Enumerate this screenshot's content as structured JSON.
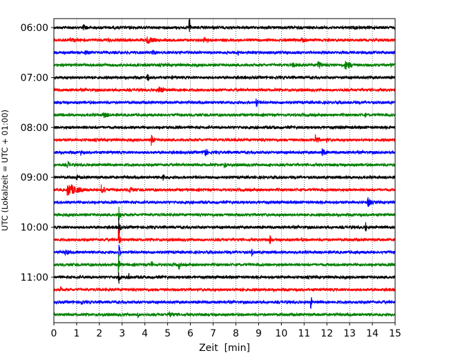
{
  "chart_data": {
    "type": "line",
    "title": "",
    "xlabel": "Zeit  [min]",
    "ylabel": "UTC (Lokalzeit = UTC + 01:00)",
    "xlim": [
      0,
      15
    ],
    "x_ticks": [
      "0",
      "1",
      "2",
      "3",
      "4",
      "5",
      "6",
      "7",
      "8",
      "9",
      "10",
      "11",
      "12",
      "13",
      "14",
      "15"
    ],
    "y_tick_labels": [
      "06:00",
      "07:00",
      "08:00",
      "09:00",
      "10:00",
      "11:00"
    ],
    "y_tick_trace_index": [
      0,
      4,
      8,
      12,
      16,
      20
    ],
    "grid": {
      "x": "dotted vertical at each minute",
      "y": "none"
    },
    "trace_colors": [
      "#000000",
      "#ff0000",
      "#0000ff",
      "#008000"
    ],
    "trace_interval_minutes": 15,
    "traces": [
      {
        "start": "06:00",
        "color": "#000000",
        "events": [
          {
            "t": 1.3,
            "amp": 0.5,
            "dur": 0.5
          },
          {
            "t": 5.95,
            "amp": 1.7,
            "dur": 0.1
          },
          {
            "t": 13.3,
            "amp": 0.35,
            "dur": 0.3
          }
        ]
      },
      {
        "start": "06:15",
        "color": "#ff0000",
        "events": [
          {
            "t": 0.7,
            "amp": 0.45,
            "dur": 0.9
          },
          {
            "t": 2.4,
            "amp": 0.35,
            "dur": 0.5
          },
          {
            "t": 4.1,
            "amp": 0.7,
            "dur": 0.7
          },
          {
            "t": 6.6,
            "amp": 0.45,
            "dur": 0.9
          },
          {
            "t": 10.9,
            "amp": 0.5,
            "dur": 0.6
          }
        ]
      },
      {
        "start": "06:30",
        "color": "#0000ff",
        "events": [
          {
            "t": 1.4,
            "amp": 0.4,
            "dur": 0.9
          },
          {
            "t": 4.3,
            "amp": 0.45,
            "dur": 0.8
          },
          {
            "t": 8.1,
            "amp": 0.5,
            "dur": 0.1
          }
        ]
      },
      {
        "start": "06:45",
        "color": "#008000",
        "events": [
          {
            "t": 10.5,
            "amp": 0.4,
            "dur": 1.0
          },
          {
            "t": 11.6,
            "amp": 0.8,
            "dur": 0.4
          },
          {
            "t": 12.8,
            "amp": 0.7,
            "dur": 0.8
          },
          {
            "t": 14.8,
            "amp": 0.4,
            "dur": 0.3
          }
        ]
      },
      {
        "start": "07:00",
        "color": "#000000",
        "events": [
          {
            "t": 4.1,
            "amp": 0.8,
            "dur": 0.2
          },
          {
            "t": 5.2,
            "amp": 0.3,
            "dur": 0.3
          },
          {
            "t": 13.9,
            "amp": 0.3,
            "dur": 0.2
          }
        ]
      },
      {
        "start": "07:15",
        "color": "#ff0000",
        "events": [
          {
            "t": 4.6,
            "amp": 0.6,
            "dur": 0.8
          },
          {
            "t": 5.7,
            "amp": 0.35,
            "dur": 0.3
          }
        ]
      },
      {
        "start": "07:30",
        "color": "#0000ff",
        "events": [
          {
            "t": 8.9,
            "amp": 1.0,
            "dur": 0.1
          }
        ]
      },
      {
        "start": "07:45",
        "color": "#008000",
        "events": [
          {
            "t": 2.2,
            "amp": 0.5,
            "dur": 0.8
          },
          {
            "t": 13.7,
            "amp": 0.4,
            "dur": 0.1
          }
        ]
      },
      {
        "start": "08:00",
        "color": "#000000",
        "events": [
          {
            "t": 1.3,
            "amp": 0.3,
            "dur": 0.4
          },
          {
            "t": 9.7,
            "amp": 0.3,
            "dur": 0.4
          },
          {
            "t": 12.6,
            "amp": 0.35,
            "dur": 0.3
          }
        ]
      },
      {
        "start": "08:15",
        "color": "#ff0000",
        "events": [
          {
            "t": 4.3,
            "amp": 0.9,
            "dur": 0.2
          },
          {
            "t": 11.5,
            "amp": 1.0,
            "dur": 0.3
          },
          {
            "t": 12.0,
            "amp": 0.4,
            "dur": 0.5
          }
        ]
      },
      {
        "start": "08:30",
        "color": "#0000ff",
        "events": [
          {
            "t": 1.2,
            "amp": 0.5,
            "dur": 0.1
          },
          {
            "t": 6.6,
            "amp": 0.9,
            "dur": 0.3
          },
          {
            "t": 11.8,
            "amp": 0.6,
            "dur": 0.4
          }
        ]
      },
      {
        "start": "08:45",
        "color": "#008000",
        "events": [
          {
            "t": 0.6,
            "amp": 0.7,
            "dur": 0.2
          },
          {
            "t": 7.5,
            "amp": 0.6,
            "dur": 0.2
          },
          {
            "t": 9.5,
            "amp": 0.4,
            "dur": 0.1
          }
        ]
      },
      {
        "start": "09:00",
        "color": "#000000",
        "events": [
          {
            "t": 1.0,
            "amp": 0.5,
            "dur": 0.2
          },
          {
            "t": 4.8,
            "amp": 0.7,
            "dur": 0.1
          },
          {
            "t": 10.0,
            "amp": 0.3,
            "dur": 0.3
          }
        ]
      },
      {
        "start": "09:15",
        "color": "#ff0000",
        "events": [
          {
            "t": 0.6,
            "amp": 1.0,
            "dur": 1.2
          },
          {
            "t": 2.1,
            "amp": 0.8,
            "dur": 0.4
          },
          {
            "t": 3.3,
            "amp": 0.6,
            "dur": 0.5
          },
          {
            "t": 12.4,
            "amp": 0.3,
            "dur": 0.3
          }
        ]
      },
      {
        "start": "09:30",
        "color": "#0000ff",
        "events": [
          {
            "t": 13.8,
            "amp": 1.1,
            "dur": 0.2
          }
        ]
      },
      {
        "start": "09:45",
        "color": "#008000",
        "events": [
          {
            "t": 2.85,
            "amp": 1.6,
            "dur": 0.1
          },
          {
            "t": 8.0,
            "amp": 0.3,
            "dur": 0.3
          }
        ]
      },
      {
        "start": "10:00",
        "color": "#000000",
        "events": [
          {
            "t": 2.85,
            "amp": 1.6,
            "dur": 0.1
          },
          {
            "t": 13.7,
            "amp": 0.9,
            "dur": 0.1
          }
        ]
      },
      {
        "start": "10:15",
        "color": "#ff0000",
        "events": [
          {
            "t": 2.85,
            "amp": 1.6,
            "dur": 0.1
          },
          {
            "t": 9.5,
            "amp": 0.8,
            "dur": 0.1
          },
          {
            "t": 10.9,
            "amp": 0.4,
            "dur": 0.2
          }
        ]
      },
      {
        "start": "10:30",
        "color": "#0000ff",
        "events": [
          {
            "t": 0.5,
            "amp": 0.5,
            "dur": 0.6
          },
          {
            "t": 2.85,
            "amp": 1.6,
            "dur": 0.1
          },
          {
            "t": 8.7,
            "amp": 0.8,
            "dur": 0.1
          }
        ]
      },
      {
        "start": "10:45",
        "color": "#008000",
        "events": [
          {
            "t": 2.85,
            "amp": 1.6,
            "dur": 0.1
          },
          {
            "t": 4.3,
            "amp": 0.6,
            "dur": 0.2
          },
          {
            "t": 5.5,
            "amp": 0.7,
            "dur": 0.2
          }
        ]
      },
      {
        "start": "11:00",
        "color": "#000000",
        "events": [
          {
            "t": 2.85,
            "amp": 1.3,
            "dur": 0.1
          },
          {
            "t": 3.3,
            "amp": 0.6,
            "dur": 0.3
          },
          {
            "t": 4.5,
            "amp": 0.4,
            "dur": 0.2
          },
          {
            "t": 5.9,
            "amp": 0.3,
            "dur": 0.3
          }
        ]
      },
      {
        "start": "11:15",
        "color": "#ff0000",
        "events": [
          {
            "t": 0.3,
            "amp": 0.5,
            "dur": 0.2
          },
          {
            "t": 8.3,
            "amp": 0.3,
            "dur": 0.3
          }
        ]
      },
      {
        "start": "11:30",
        "color": "#0000ff",
        "events": [
          {
            "t": 1.2,
            "amp": 0.5,
            "dur": 0.3
          },
          {
            "t": 11.3,
            "amp": 1.0,
            "dur": 0.1
          }
        ]
      },
      {
        "start": "11:45",
        "color": "#008000",
        "events": [
          {
            "t": 3.7,
            "amp": 0.5,
            "dur": 0.2
          },
          {
            "t": 5.1,
            "amp": 0.5,
            "dur": 0.6
          }
        ]
      }
    ]
  }
}
